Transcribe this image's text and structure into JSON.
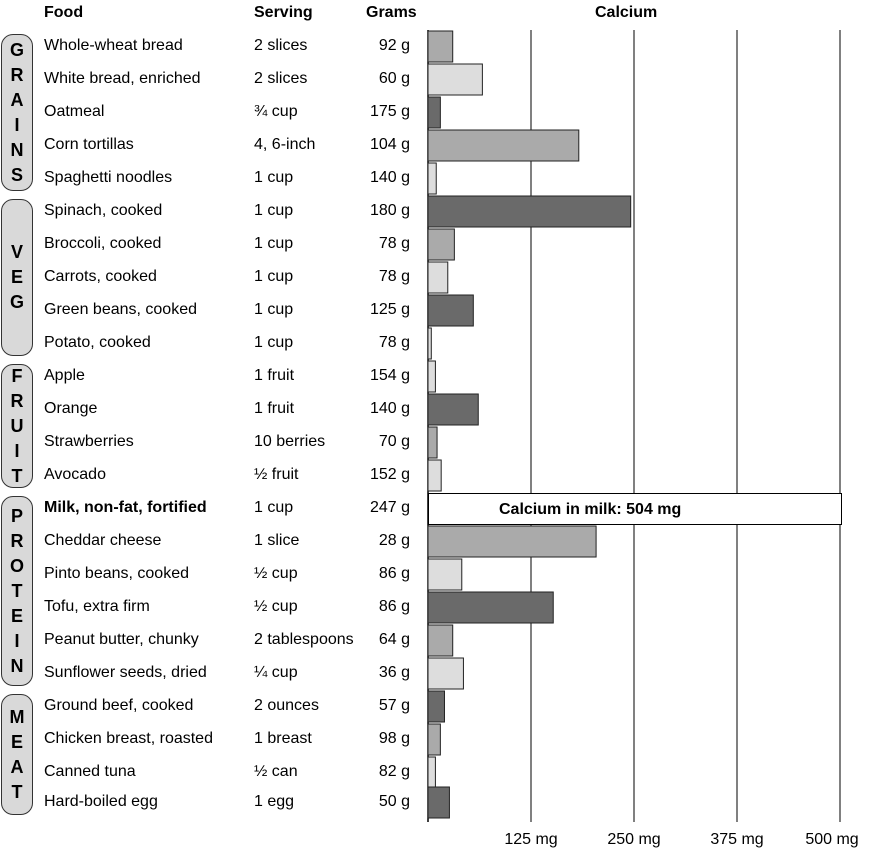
{
  "headers": {
    "food": "Food",
    "serving": "Serving",
    "grams": "Grams",
    "calcium": "Calcium"
  },
  "groups": [
    {
      "letters": [
        "G",
        "R",
        "A",
        "I",
        "N",
        "S"
      ],
      "rows": [
        0,
        4
      ]
    },
    {
      "letters": [
        "V",
        "E",
        "G"
      ],
      "rows": [
        5,
        9
      ]
    },
    {
      "letters": [
        "F",
        "R",
        "U",
        "I",
        "T"
      ],
      "rows": [
        10,
        13
      ]
    },
    {
      "letters": [
        "P",
        "R",
        "O",
        "T",
        "E",
        "I",
        "N"
      ],
      "rows": [
        14,
        19
      ]
    },
    {
      "letters": [
        "M",
        "E",
        "A",
        "T"
      ],
      "rows": [
        20,
        23
      ]
    }
  ],
  "rows": [
    {
      "food": "Whole-wheat bread",
      "serving": "2 slices",
      "grams": "92 g"
    },
    {
      "food": "White bread, enriched",
      "serving": "2 slices",
      "grams": "60 g"
    },
    {
      "food": "Oatmeal",
      "serving": "¾ cup",
      "grams": "175 g"
    },
    {
      "food": "Corn tortillas",
      "serving": "4, 6-inch",
      "grams": "104 g"
    },
    {
      "food": "Spaghetti noodles",
      "serving": "1 cup",
      "grams": "140 g"
    },
    {
      "food": "Spinach, cooked",
      "serving": "1 cup",
      "grams": "180 g"
    },
    {
      "food": "Broccoli, cooked",
      "serving": "1 cup",
      "grams": "78 g"
    },
    {
      "food": "Carrots, cooked",
      "serving": "1 cup",
      "grams": "78 g"
    },
    {
      "food": "Green beans, cooked",
      "serving": "1 cup",
      "grams": "125 g"
    },
    {
      "food": "Potato, cooked",
      "serving": "1 cup",
      "grams": "78 g"
    },
    {
      "food": "Apple",
      "serving": "1 fruit",
      "grams": "154 g"
    },
    {
      "food": "Orange",
      "serving": "1 fruit",
      "grams": "140 g"
    },
    {
      "food": "Strawberries",
      "serving": "10 berries",
      "grams": "70 g"
    },
    {
      "food": "Avocado",
      "serving": "½ fruit",
      "grams": "152 g"
    },
    {
      "food": "Milk, non-fat, fortified",
      "serving": "1 cup",
      "grams": "247 g",
      "bold": true
    },
    {
      "food": "Cheddar cheese",
      "serving": "1 slice",
      "grams": "28 g"
    },
    {
      "food": "Pinto beans, cooked",
      "serving": "½ cup",
      "grams": "86 g"
    },
    {
      "food": "Tofu, extra firm",
      "serving": "½ cup",
      "grams": "86 g"
    },
    {
      "food": "Peanut butter, chunky",
      "serving": "2 tablespoons",
      "grams": "64 g"
    },
    {
      "food": "Sunflower seeds, dried",
      "serving": "¼ cup",
      "grams": "36 g"
    },
    {
      "food": "Ground beef, cooked",
      "serving": "2 ounces",
      "grams": "57 g"
    },
    {
      "food": "Chicken breast, roasted",
      "serving": "1 breast",
      "grams": "98 g"
    },
    {
      "food": "Canned tuna",
      "serving": "½ can",
      "grams": "82 g"
    },
    {
      "food": "Hard-boiled egg",
      "serving": "1 egg",
      "grams": "50 g"
    }
  ],
  "chart_data": {
    "type": "bar",
    "orientation": "horizontal",
    "title": "Calcium",
    "categories": [
      "Whole-wheat bread",
      "White bread, enriched",
      "Oatmeal",
      "Corn tortillas",
      "Spaghetti noodles",
      "Spinach, cooked",
      "Broccoli, cooked",
      "Carrots, cooked",
      "Green beans, cooked",
      "Potato, cooked",
      "Apple",
      "Orange",
      "Strawberries",
      "Avocado",
      "Milk, non-fat, fortified",
      "Cheddar cheese",
      "Pinto beans, cooked",
      "Tofu, extra firm",
      "Peanut butter, chunky",
      "Sunflower seeds, dried",
      "Ground beef, cooked",
      "Chicken breast, roasted",
      "Canned tuna",
      "Hard-boiled egg"
    ],
    "values": [
      30,
      66,
      15,
      183,
      10,
      246,
      32,
      24,
      55,
      4,
      9,
      61,
      11,
      16,
      504,
      204,
      41,
      152,
      30,
      43,
      20,
      15,
      9,
      26
    ],
    "bar_shades": [
      "#aaaaaa",
      "#dddddd",
      "#6a6a6a",
      "#aaaaaa",
      "#dddddd",
      "#6a6a6a",
      "#aaaaaa",
      "#dddddd",
      "#6a6a6a",
      "#dddddd",
      "#dddddd",
      "#6a6a6a",
      "#aaaaaa",
      "#dddddd",
      "#ffffff",
      "#aaaaaa",
      "#dddddd",
      "#6a6a6a",
      "#aaaaaa",
      "#dddddd",
      "#6a6a6a",
      "#aaaaaa",
      "#dddddd",
      "#6a6a6a"
    ],
    "xlim": [
      0,
      500
    ],
    "xticks": [
      125,
      250,
      375,
      500
    ],
    "tick_labels": [
      "125 mg",
      "250 mg",
      "375 mg",
      "500 mg"
    ],
    "annotation": "Calcium in milk: 504 mg",
    "grid": true
  }
}
